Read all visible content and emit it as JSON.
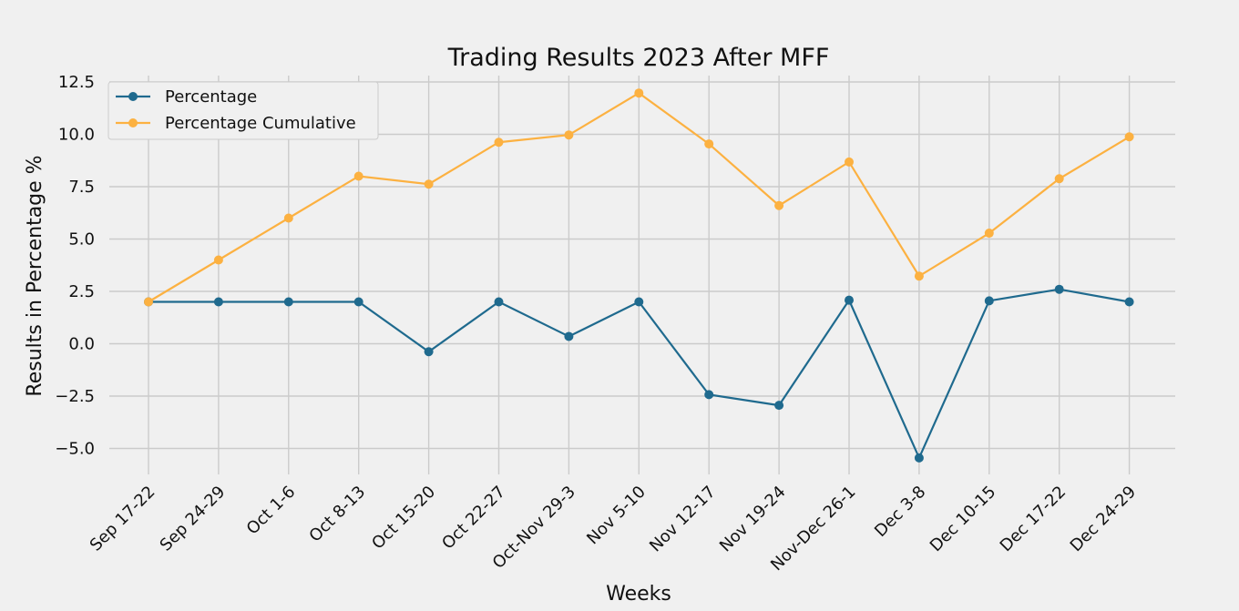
{
  "chart_data": {
    "type": "line",
    "title": "Trading Results 2023 After MFF",
    "xlabel": "Weeks",
    "ylabel": "Results in Percentage %",
    "categories": [
      "Sep 17-22",
      "Sep 24-29",
      "Oct 1-6",
      "Oct 8-13",
      "Oct 15-20",
      "Oct 22-27",
      "Oct-Nov 29-3",
      "Nov 5-10",
      "Nov 12-17",
      "Nov 19-24",
      "Nov-Dec 26-1",
      "Dec 3-8",
      "Dec 10-15",
      "Dec 17-22",
      "Dec 24-29"
    ],
    "series": [
      {
        "name": "Percentage",
        "color": "#1f6a8e",
        "values": [
          2.0,
          2.0,
          2.0,
          2.0,
          -0.38,
          2.0,
          0.35,
          2.0,
          -2.43,
          -2.94,
          2.08,
          -5.45,
          2.05,
          2.6,
          2.0
        ]
      },
      {
        "name": "Percentage Cumulative",
        "color": "#fcb141",
        "values": [
          2.0,
          4.0,
          6.0,
          8.0,
          7.62,
          9.62,
          9.97,
          11.97,
          9.54,
          6.6,
          8.68,
          3.23,
          5.28,
          7.88,
          9.88
        ]
      }
    ],
    "ylim": [
      -6.2,
      12.5
    ],
    "yticks": [
      12.5,
      10.0,
      7.5,
      5.0,
      2.5,
      0.0,
      -2.5,
      -5.0
    ],
    "ytick_labels": [
      "12.5",
      "10.0",
      "7.5",
      "5.0",
      "2.5",
      "0.0",
      "−2.5",
      "−5.0"
    ],
    "grid": true,
    "legend_position": "top-left",
    "style": "fivethirtyeight"
  }
}
